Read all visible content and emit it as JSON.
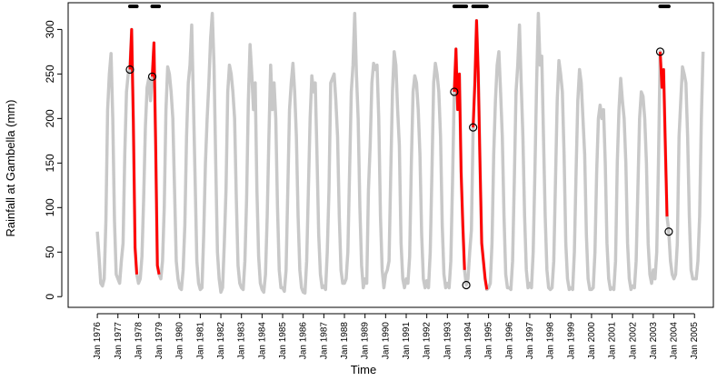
{
  "chart_data": {
    "type": "line",
    "xlabel": "Time",
    "ylabel": "Rainfall at Gambella (mm)",
    "start": "1976-01",
    "frequency": "monthly",
    "xlim": [
      "1974-08",
      "2005-12"
    ],
    "ylim": [
      -12,
      330
    ],
    "yticks": [
      0,
      50,
      100,
      150,
      200,
      250,
      300
    ],
    "xticks": [
      {
        "value": "1976-01",
        "label": "Jan 1976"
      },
      {
        "value": "1977-01",
        "label": "Jan 1977"
      },
      {
        "value": "1978-01",
        "label": "Jan 1978"
      },
      {
        "value": "1979-01",
        "label": "Jan 1979"
      },
      {
        "value": "1980-01",
        "label": "Jan 1980"
      },
      {
        "value": "1981-01",
        "label": "Jan 1981"
      },
      {
        "value": "1982-01",
        "label": "Jan 1982"
      },
      {
        "value": "1983-01",
        "label": "Jan 1983"
      },
      {
        "value": "1984-01",
        "label": "Jan 1984"
      },
      {
        "value": "1985-01",
        "label": "Jan 1985"
      },
      {
        "value": "1986-01",
        "label": "Jan 1986"
      },
      {
        "value": "1987-01",
        "label": "Jan 1987"
      },
      {
        "value": "1988-01",
        "label": "Jan 1988"
      },
      {
        "value": "1989-01",
        "label": "Jan 1989"
      },
      {
        "value": "1990-01",
        "label": "Jan 1990"
      },
      {
        "value": "1991-01",
        "label": "Jan 1991"
      },
      {
        "value": "1992-01",
        "label": "Jan 1992"
      },
      {
        "value": "1993-01",
        "label": "Jan 1993"
      },
      {
        "value": "1994-01",
        "label": "Jan 1994"
      },
      {
        "value": "1995-01",
        "label": "Jan 1995"
      },
      {
        "value": "1996-01",
        "label": "Jan 1996"
      },
      {
        "value": "1997-01",
        "label": "Jan 1997"
      },
      {
        "value": "1998-01",
        "label": "Jan 1998"
      },
      {
        "value": "1999-01",
        "label": "Jan 1999"
      },
      {
        "value": "2000-01",
        "label": "Jan 2000"
      },
      {
        "value": "2001-01",
        "label": "Jan 2001"
      },
      {
        "value": "2002-01",
        "label": "Jan 2002"
      },
      {
        "value": "2003-01",
        "label": "Jan 2003"
      },
      {
        "value": "2004-01",
        "label": "Jan 2004"
      },
      {
        "value": "2005-01",
        "label": "Jan 2005"
      }
    ],
    "color": "#c8c8c8",
    "values": [
      73,
      45,
      15,
      12,
      20,
      85,
      210,
      250,
      273,
      200,
      85,
      25,
      20,
      15,
      40,
      60,
      160,
      230,
      250,
      255,
      300,
      195,
      55,
      25,
      15,
      20,
      45,
      110,
      190,
      235,
      245,
      220,
      247,
      285,
      170,
      35,
      25,
      20,
      40,
      100,
      210,
      258,
      250,
      230,
      200,
      120,
      40,
      20,
      10,
      8,
      30,
      80,
      180,
      240,
      260,
      305,
      220,
      130,
      40,
      15,
      8,
      10,
      70,
      150,
      200,
      240,
      290,
      318,
      260,
      150,
      50,
      20,
      5,
      10,
      60,
      120,
      230,
      260,
      250,
      230,
      200,
      110,
      35,
      15,
      10,
      8,
      40,
      110,
      220,
      283,
      250,
      210,
      240,
      120,
      45,
      15,
      8,
      5,
      25,
      90,
      180,
      260,
      210,
      240,
      200,
      100,
      30,
      10,
      10,
      6,
      30,
      120,
      210,
      240,
      262,
      230,
      180,
      90,
      30,
      10,
      5,
      4,
      40,
      120,
      200,
      248,
      230,
      240,
      160,
      70,
      25,
      10,
      12,
      8,
      50,
      120,
      240,
      245,
      250,
      220,
      180,
      90,
      30,
      15,
      15,
      20,
      50,
      140,
      230,
      260,
      318,
      250,
      200,
      100,
      35,
      10,
      20,
      15,
      120,
      170,
      240,
      262,
      255,
      260,
      200,
      90,
      30,
      10,
      25,
      30,
      40,
      140,
      230,
      275,
      260,
      210,
      170,
      60,
      20,
      10,
      20,
      15,
      45,
      150,
      230,
      248,
      240,
      210,
      160,
      70,
      20,
      10,
      18,
      10,
      50,
      140,
      240,
      262,
      250,
      230,
      180,
      80,
      25,
      10,
      15,
      10,
      40,
      130,
      230,
      278,
      210,
      250,
      140,
      80,
      30,
      13,
      20,
      50,
      75,
      190,
      240,
      310,
      250,
      150,
      60,
      40,
      20,
      8,
      10,
      15,
      60,
      160,
      220,
      260,
      275,
      230,
      180,
      90,
      25,
      10,
      10,
      8,
      40,
      130,
      230,
      260,
      305,
      240,
      180,
      90,
      30,
      10,
      15,
      10,
      50,
      140,
      240,
      318,
      260,
      270,
      180,
      90,
      30,
      10,
      8,
      10,
      40,
      130,
      220,
      265,
      250,
      230,
      160,
      60,
      20,
      8,
      10,
      8,
      50,
      140,
      220,
      255,
      240,
      200,
      160,
      70,
      20,
      8,
      8,
      10,
      50,
      140,
      200,
      215,
      200,
      210,
      150,
      60,
      20,
      8,
      10,
      8,
      40,
      150,
      210,
      245,
      220,
      200,
      150,
      60,
      20,
      8,
      12,
      10,
      40,
      120,
      200,
      230,
      225,
      200,
      150,
      60,
      25,
      15,
      30,
      20,
      50,
      150,
      275,
      235,
      255,
      170,
      90,
      73,
      40,
      25,
      20,
      25,
      60,
      180,
      220,
      258,
      250,
      240,
      180,
      90,
      30,
      20,
      20,
      20,
      40,
      90,
      200,
      275
    ],
    "series": [
      {
        "color": "#ff0000",
        "x": [
          "1977-08",
          "1977-09",
          "1977-10",
          "1977-11",
          "1977-12"
        ],
        "values": [
          255,
          300,
          195,
          55,
          25
        ]
      },
      {
        "color": "#ff0000",
        "x": [
          "1978-09",
          "1978-10",
          "1978-11",
          "1978-12",
          "1979-01"
        ],
        "values": [
          247,
          285,
          170,
          35,
          25
        ]
      },
      {
        "color": "#ff0000",
        "x": [
          "1993-05",
          "1993-06",
          "1993-07",
          "1993-08",
          "1993-09",
          "1993-10",
          "1993-11"
        ],
        "values": [
          230,
          278,
          210,
          250,
          140,
          80,
          30
        ]
      },
      {
        "color": "#ff0000",
        "x": [
          "1994-04",
          "1994-05",
          "1994-06",
          "1994-07",
          "1994-08",
          "1994-09",
          "1994-10",
          "1994-11",
          "1994-12"
        ],
        "values": [
          190,
          240,
          310,
          250,
          150,
          60,
          40,
          20,
          8
        ]
      },
      {
        "color": "#ff0000",
        "x": [
          "2003-05",
          "2003-06",
          "2003-07",
          "2003-08",
          "2003-09"
        ],
        "values": [
          275,
          235,
          255,
          170,
          90
        ]
      }
    ],
    "points": {
      "color": "#000000",
      "x": [
        "1977-08",
        "1978-09",
        "1993-05",
        "1993-12",
        "1994-04",
        "2003-05",
        "2003-10"
      ],
      "values": [
        255,
        247,
        230,
        13,
        190,
        275,
        73
      ]
    },
    "periods": {
      "color": "#000000",
      "start": [
        "1977-08",
        "1978-09",
        "1993-05",
        "1994-04",
        "2003-05"
      ],
      "end": [
        "1977-12",
        "1979-01",
        "1993-12",
        "1994-12",
        "2003-10"
      ]
    }
  }
}
